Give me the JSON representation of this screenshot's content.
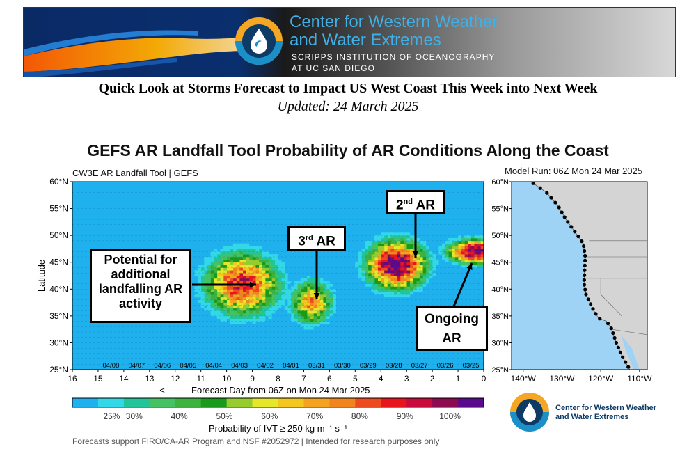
{
  "banner": {
    "org_line1": "Center for Western Weather",
    "org_line2": "and Water Extremes",
    "sub_line1": "SCRIPPS INSTITUTION  OF OCEANOGRAPHY",
    "sub_line2": "AT UC SAN DIEGO"
  },
  "headline": "Quick Look at Storms Forecast to Impact US West Coast This Week into Next Week",
  "updated": "Updated: 24 March 2025",
  "chart_title": "GEFS AR Landfall Tool Probability of AR Conditions Along the Coast",
  "tool_label": "CW3E AR Landfall Tool | GEFS",
  "model_run": "Model Run: 06Z Mon 24 Mar 2025",
  "footer": "Forecasts support FIRO/CA-AR Program and NSF #2052972 | Intended for research purposes only",
  "logo_text": {
    "line1": "Center for Western Weather",
    "line2": "and Water Extremes"
  },
  "callouts": {
    "potential": "Potential for additional landfalling AR activity",
    "third": "3",
    "third_sup": "rd",
    "second": "2",
    "second_sup": "nd",
    "ar": "AR",
    "ongoing": "Ongoing AR"
  },
  "chart_data": {
    "type": "heatmap",
    "title": "GEFS AR Landfall Tool Probability of AR Conditions Along the Coast",
    "xlabel": "<-------- Forecast Day from 06Z on Mon 24 Mar 2025 --------",
    "ylabel": "Latitude",
    "xlim": [
      16,
      0
    ],
    "ylim": [
      25,
      60
    ],
    "x_ticks": [
      "16",
      "15",
      "14",
      "13",
      "12",
      "11",
      "10",
      "9",
      "8",
      "7",
      "6",
      "5",
      "4",
      "3",
      "2",
      "1",
      "0"
    ],
    "y_ticks": [
      "25°N",
      "30°N",
      "35°N",
      "40°N",
      "45°N",
      "50°N",
      "55°N",
      "60°N"
    ],
    "date_ticks": [
      "04/08",
      "04/07",
      "04/06",
      "04/05",
      "04/04",
      "04/03",
      "04/02",
      "04/01",
      "03/31",
      "03/30",
      "03/29",
      "03/28",
      "03/27",
      "03/26",
      "03/25"
    ],
    "colorbar_label": "Probability of IVT ≥ 250 kg m⁻¹ s⁻¹",
    "colorbar_ticks": [
      "25%",
      "30%",
      "40%",
      "50%",
      "60%",
      "70%",
      "80%",
      "90%",
      "100%"
    ],
    "colors": [
      "#1fb0ee",
      "#33d8e8",
      "#22c49a",
      "#45c262",
      "#3db23e",
      "#1a9a1a",
      "#96cc2e",
      "#e6e62a",
      "#f4c71e",
      "#f4a320",
      "#f2841e",
      "#ee4a20",
      "#e8141e",
      "#c80a3c",
      "#8c0a50",
      "#5a0a8c"
    ],
    "background_color": "#1fb0ee",
    "map_x_ticks": [
      "140°W",
      "130°W",
      "120°W",
      "110°W"
    ],
    "map_y_ticks": [
      "25°N",
      "30°N",
      "35°N",
      "40°N",
      "45°N",
      "50°N",
      "55°N",
      "60°N"
    ],
    "events": [
      {
        "name": "Potential for additional landfalling AR activity",
        "day_center": 9.4,
        "lat_center": 41.0,
        "day_halfwidth": 1.6,
        "lat_halfwidth": 6.5,
        "peak_probability": 0.85
      },
      {
        "name": "3rd AR",
        "day_center": 6.7,
        "lat_center": 37.5,
        "day_halfwidth": 0.9,
        "lat_halfwidth": 4.5,
        "peak_probability": 0.72
      },
      {
        "name": "2nd AR",
        "day_center": 3.4,
        "lat_center": 44.5,
        "day_halfwidth": 1.3,
        "lat_halfwidth": 5.0,
        "peak_probability": 1.0
      },
      {
        "name": "Ongoing AR",
        "day_center": 0.3,
        "lat_center": 47.0,
        "day_halfwidth": 1.2,
        "lat_halfwidth": 2.5,
        "peak_probability": 1.0
      }
    ]
  }
}
